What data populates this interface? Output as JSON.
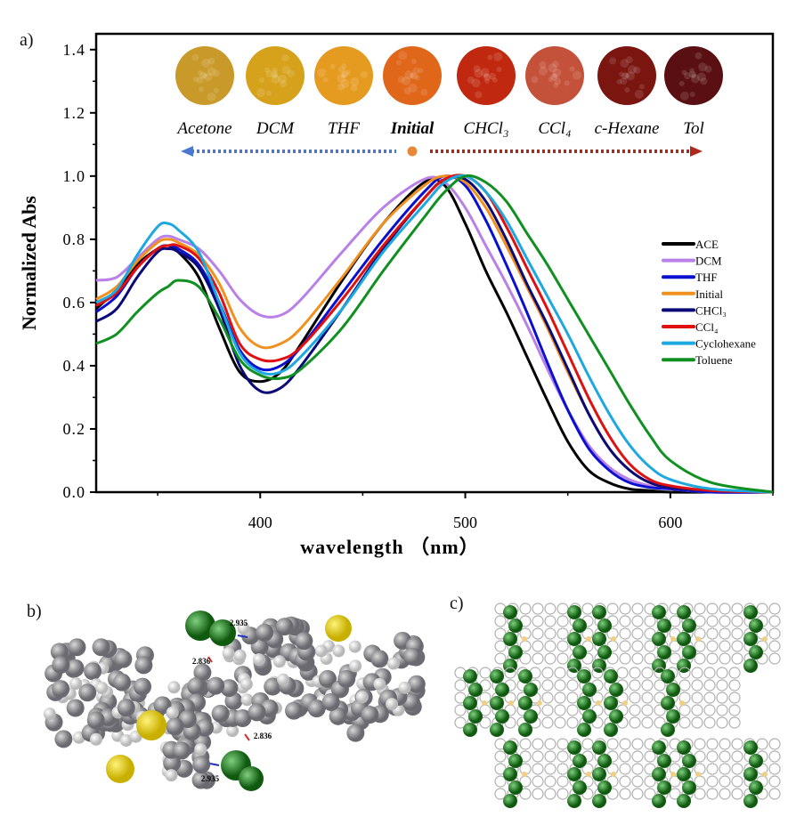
{
  "panels": {
    "a": "a)",
    "b": "b)",
    "c": "c)"
  },
  "photos": {
    "items": [
      {
        "label": "Acetone",
        "color": "#c99a2a",
        "bold": false
      },
      {
        "label": "DCM",
        "color": "#d6a21c",
        "bold": false
      },
      {
        "label": "THF",
        "color": "#e59a20",
        "bold": false
      },
      {
        "label": "Initial",
        "color": "#e0661a",
        "bold": true
      },
      {
        "label": "CHCl₃",
        "color": "#c0290f",
        "bold": false
      },
      {
        "label": "CCl₄",
        "color": "#c4523a",
        "bold": false
      },
      {
        "label": "c-Hexane",
        "color": "#7a1510",
        "bold": false
      },
      {
        "label": "Tol",
        "color": "#5a1012",
        "bold": false
      }
    ],
    "arrow_left_color": "#4a78d0",
    "arrow_right_color": "#b0281c",
    "dot_color": "#e8893a"
  },
  "chart_data": {
    "type": "line",
    "title": "",
    "xlabel": "wavelength （nm）",
    "ylabel": "Normalized Abs",
    "xlim": [
      320,
      650
    ],
    "ylim": [
      0,
      1.45
    ],
    "xticks": [
      400,
      500,
      600
    ],
    "yticks": [
      0.0,
      0.2,
      0.4,
      0.6,
      0.8,
      1.0,
      1.2,
      1.4
    ],
    "ytick_labels": [
      "0.0",
      "0.2",
      "0.4",
      "0.6",
      "0.8",
      "1.0",
      "1.2",
      "1.4"
    ],
    "grid": false,
    "legend_position": "right",
    "x": [
      320,
      330,
      340,
      350,
      355,
      360,
      370,
      380,
      390,
      400,
      410,
      420,
      440,
      460,
      480,
      490,
      500,
      510,
      520,
      530,
      540,
      550,
      560,
      570,
      580,
      590,
      600,
      620,
      650
    ],
    "series": [
      {
        "name": "ACE",
        "color": "#000000",
        "values": [
          0.58,
          0.64,
          0.72,
          0.77,
          0.78,
          0.76,
          0.68,
          0.52,
          0.38,
          0.35,
          0.38,
          0.47,
          0.67,
          0.85,
          0.98,
          0.97,
          0.85,
          0.7,
          0.57,
          0.43,
          0.29,
          0.16,
          0.07,
          0.03,
          0.01,
          0.005,
          0,
          0,
          0
        ]
      },
      {
        "name": "DCM",
        "color": "#b980e8",
        "values": [
          0.67,
          0.68,
          0.74,
          0.8,
          0.81,
          0.8,
          0.77,
          0.7,
          0.61,
          0.56,
          0.56,
          0.61,
          0.76,
          0.9,
          0.99,
          0.98,
          0.9,
          0.78,
          0.66,
          0.53,
          0.39,
          0.26,
          0.15,
          0.08,
          0.04,
          0.02,
          0.01,
          0,
          0
        ]
      },
      {
        "name": "THF",
        "color": "#0a10d0",
        "values": [
          0.57,
          0.62,
          0.71,
          0.77,
          0.78,
          0.77,
          0.72,
          0.6,
          0.45,
          0.39,
          0.4,
          0.46,
          0.63,
          0.8,
          0.95,
          1.0,
          0.97,
          0.86,
          0.72,
          0.57,
          0.41,
          0.26,
          0.14,
          0.07,
          0.03,
          0.015,
          0.01,
          0,
          0
        ]
      },
      {
        "name": "Initial",
        "color": "#f0901e",
        "values": [
          0.61,
          0.65,
          0.73,
          0.79,
          0.8,
          0.79,
          0.75,
          0.66,
          0.52,
          0.46,
          0.47,
          0.52,
          0.68,
          0.85,
          0.97,
          1.0,
          0.98,
          0.9,
          0.78,
          0.65,
          0.52,
          0.38,
          0.25,
          0.14,
          0.07,
          0.03,
          0.015,
          0.005,
          0
        ]
      },
      {
        "name": "CHCl₃",
        "color": "#0a0a78",
        "values": [
          0.54,
          0.58,
          0.68,
          0.76,
          0.77,
          0.76,
          0.71,
          0.58,
          0.4,
          0.32,
          0.33,
          0.4,
          0.58,
          0.77,
          0.93,
          0.99,
          0.99,
          0.92,
          0.8,
          0.66,
          0.53,
          0.39,
          0.25,
          0.14,
          0.07,
          0.03,
          0.015,
          0.005,
          0
        ]
      },
      {
        "name": "CCl₄",
        "color": "#e01010",
        "values": [
          0.59,
          0.63,
          0.71,
          0.77,
          0.78,
          0.78,
          0.74,
          0.63,
          0.47,
          0.42,
          0.42,
          0.46,
          0.61,
          0.78,
          0.93,
          0.99,
          1.0,
          0.95,
          0.84,
          0.71,
          0.58,
          0.44,
          0.3,
          0.18,
          0.09,
          0.04,
          0.02,
          0.005,
          0
        ]
      },
      {
        "name": "Cyclohexane",
        "color": "#1ea8e0",
        "values": [
          0.6,
          0.64,
          0.75,
          0.84,
          0.85,
          0.83,
          0.76,
          0.6,
          0.44,
          0.38,
          0.38,
          0.43,
          0.58,
          0.76,
          0.91,
          0.98,
          1.0,
          0.95,
          0.86,
          0.74,
          0.62,
          0.5,
          0.37,
          0.25,
          0.15,
          0.08,
          0.04,
          0.01,
          0
        ]
      },
      {
        "name": "Toluene",
        "color": "#109020",
        "values": [
          0.47,
          0.5,
          0.57,
          0.63,
          0.65,
          0.67,
          0.65,
          0.55,
          0.42,
          0.37,
          0.36,
          0.39,
          0.52,
          0.7,
          0.87,
          0.95,
          1.0,
          0.98,
          0.92,
          0.82,
          0.72,
          0.61,
          0.5,
          0.39,
          0.28,
          0.18,
          0.1,
          0.03,
          0
        ]
      }
    ]
  },
  "panel_b": {
    "distances": [
      "2.935",
      "2.836",
      "2.836",
      "2.935"
    ]
  }
}
